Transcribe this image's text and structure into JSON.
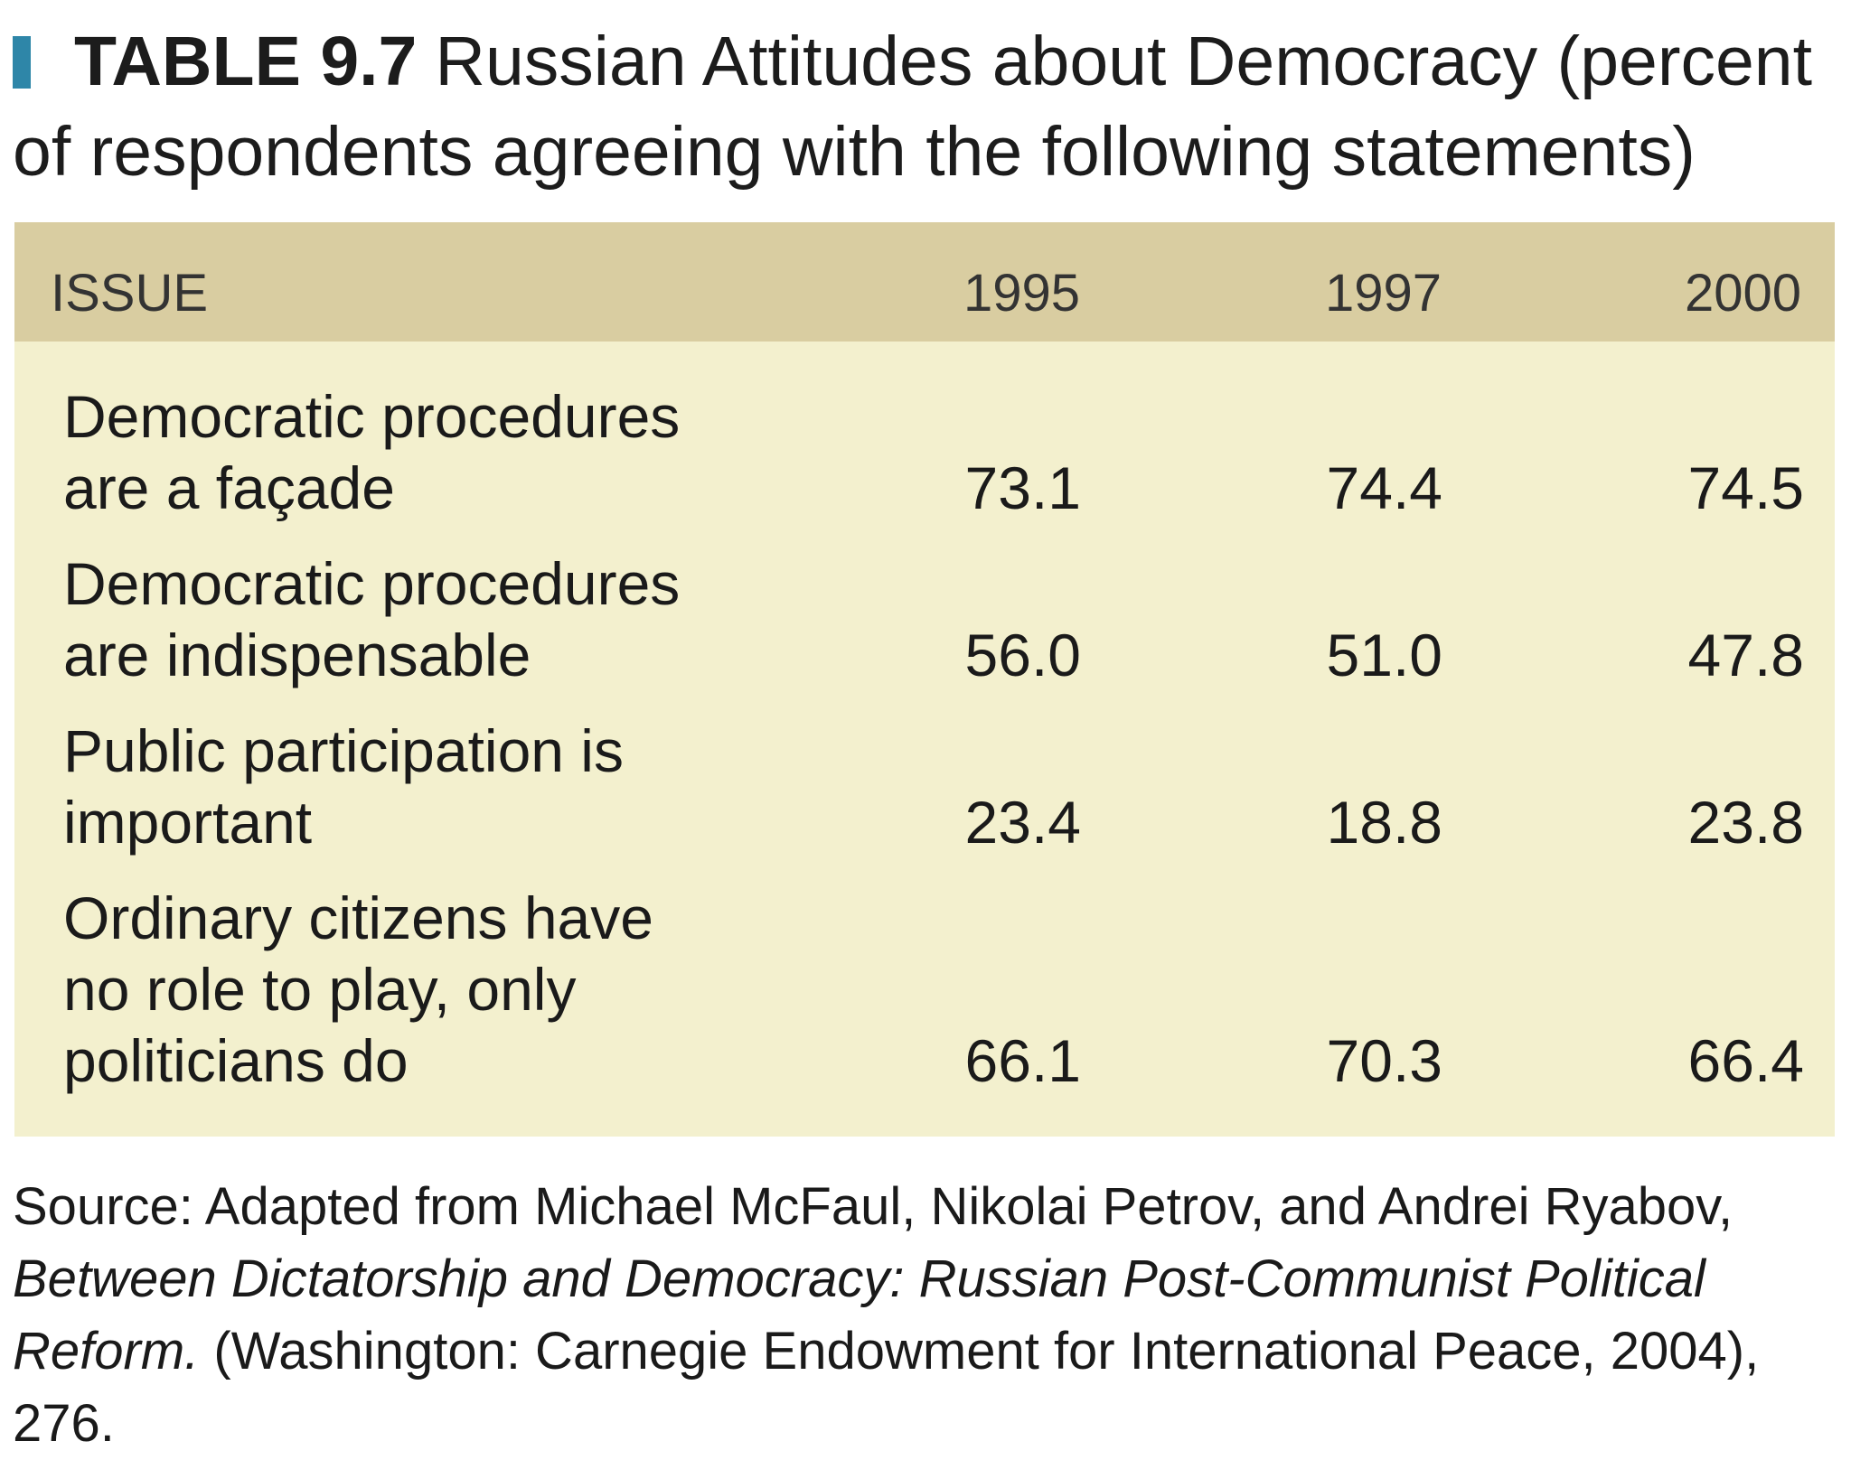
{
  "caption": {
    "label": "TABLE 9.7",
    "title": "Russian Attitudes about Democracy (percent of respondents agreeing with the following statements)"
  },
  "table": {
    "headers": {
      "issue": "ISSUE",
      "y1995": "1995",
      "y1997": "1997",
      "y2000": "2000"
    },
    "rows": [
      {
        "issue": "Democratic procedures\nare a façade",
        "y1995": "73.1",
        "y1997": "74.4",
        "y2000": "74.5"
      },
      {
        "issue": "Democratic procedures\nare indispensable",
        "y1995": "56.0",
        "y1997": "51.0",
        "y2000": "47.8"
      },
      {
        "issue": "Public participation is\nimportant",
        "y1995": "23.4",
        "y1997": "18.8",
        "y2000": "23.8"
      },
      {
        "issue": "Ordinary citizens have\nno role to play, only\npoliticians do",
        "y1995": "66.1",
        "y1997": "70.3",
        "y2000": "66.4"
      }
    ]
  },
  "source": {
    "prefix": "Source: Adapted from Michael McFaul, Nikolai Petrov, and Andrei Ryabov, ",
    "book_title": "Between Dictatorship and Democracy: Russian Post-Communist Political Reform.",
    "suffix": " (Washington: Carnegie Endowment for International Peace, 2004), 276."
  },
  "colors": {
    "marker": "#2e86a8",
    "header_band": "#d9cda1",
    "table_body": "#f3f0ce"
  }
}
